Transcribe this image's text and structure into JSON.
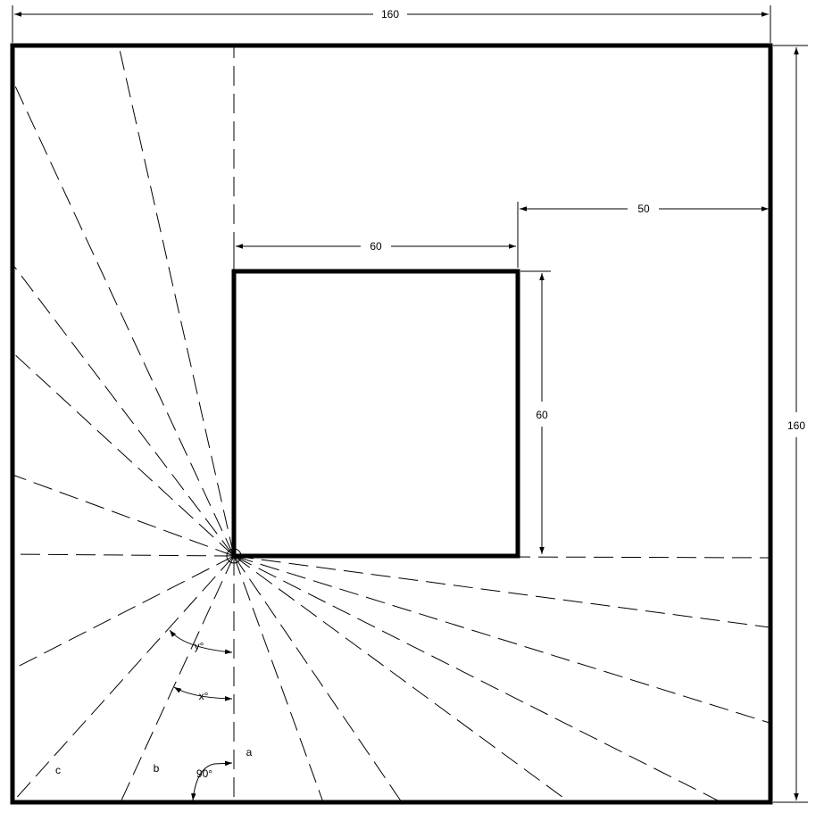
{
  "dimensions": {
    "outer_width": "160",
    "outer_height": "160",
    "inner_width": "60",
    "inner_height": "60",
    "right_gap": "50"
  },
  "angles": {
    "y": "y°",
    "x": "x°",
    "right": "90°"
  },
  "ray_labels": {
    "a": "a",
    "b": "b",
    "c": "c"
  }
}
